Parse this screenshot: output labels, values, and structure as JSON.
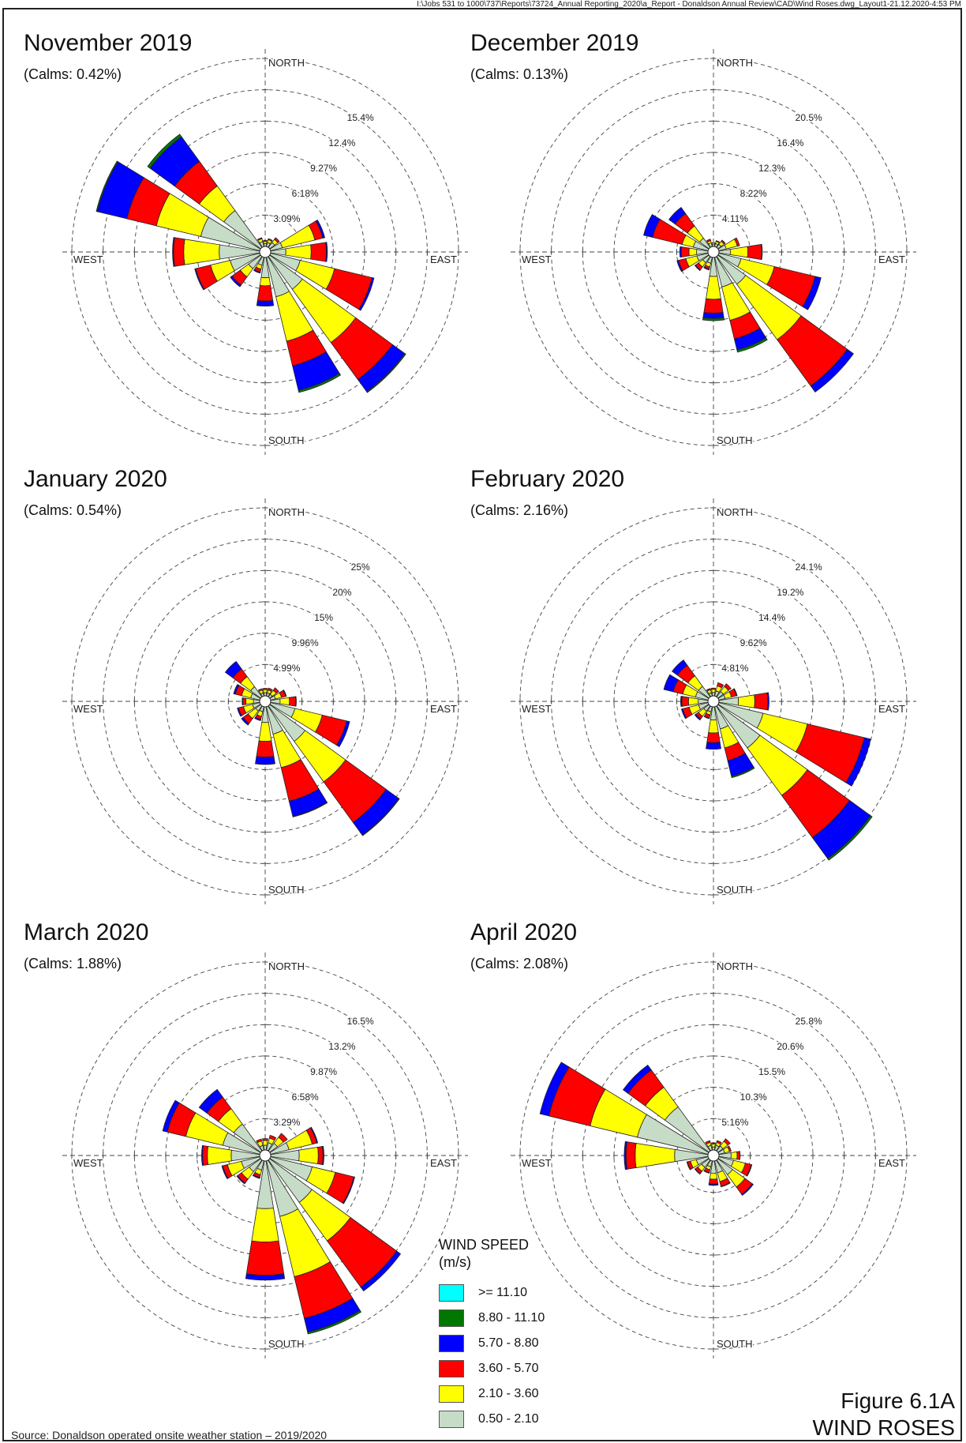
{
  "header": {
    "file_path": "I:\\Jobs 531 to 1000\\737\\Reports\\73724_Annual Reporting_2020\\a_Report - Donaldson Annual Review\\CAD\\Wind Roses.dwg_Layout1-21.12.2020-4:53 PM"
  },
  "direction_labels": {
    "north": "NORTH",
    "south": "SOUTH",
    "east": "EAST",
    "west": "WEST"
  },
  "speed_colors": [
    "#c6dcc6",
    "#ffff00",
    "#ff0000",
    "#0000ff",
    "#007700",
    "#00ffff"
  ],
  "legend": {
    "title": "WIND SPEED",
    "unit": "(m/s)",
    "items": [
      {
        "label": ">= 11.10",
        "color": "#00ffff"
      },
      {
        "label": "8.80 - 11.10",
        "color": "#007700"
      },
      {
        "label": "5.70 - 8.80",
        "color": "#0000ff"
      },
      {
        "label": "3.60 - 5.70",
        "color": "#ff0000"
      },
      {
        "label": "2.10 - 3.60",
        "color": "#ffff00"
      },
      {
        "label": "0.50 - 2.10",
        "color": "#c6dcc6"
      }
    ]
  },
  "footer": {
    "source": "Source: Donaldson operated onsite weather station – 2019/2020",
    "figure_number": "Figure 6.1A",
    "figure_title": "WIND ROSES"
  },
  "chart_data": [
    {
      "type": "wind_rose",
      "title": "November 2019",
      "calms": "(Calms: 0.42%)",
      "rings": [
        "3.09%",
        "6.18%",
        "9.27%",
        "12.4%",
        "15.4%"
      ],
      "max": 18.54,
      "directions": [
        "N",
        "NNE",
        "NE",
        "ENE",
        "E",
        "ESE",
        "SE",
        "SSE",
        "S",
        "SSW",
        "SW",
        "WSW",
        "W",
        "WNW",
        "NW",
        "NNW"
      ],
      "speed_bins": [
        "0.50 - 2.10",
        "2.10 - 3.60",
        "3.60 - 5.70",
        "5.70 - 8.80",
        "8.80 - 11.10",
        ">= 11.10"
      ],
      "frequencies": [
        [
          0.3,
          0.2,
          0.1,
          0,
          0,
          0
        ],
        [
          0.4,
          0.3,
          0.1,
          0,
          0,
          0
        ],
        [
          0.6,
          0.4,
          0.2,
          0,
          0,
          0
        ],
        [
          1.2,
          3.3,
          0.8,
          0.2,
          0,
          0
        ],
        [
          1.5,
          2.5,
          1.5,
          0.1,
          0,
          0
        ],
        [
          3.0,
          3.5,
          3.8,
          0.2,
          0,
          0
        ],
        [
          4.0,
          6.5,
          4.5,
          1.5,
          0.1,
          0
        ],
        [
          4.0,
          4.5,
          2.5,
          2.5,
          0.2,
          0
        ],
        [
          2.0,
          0.8,
          1.5,
          0.5,
          0,
          0
        ],
        [
          0.8,
          0.4,
          0.3,
          0.1,
          0,
          0
        ],
        [
          1.5,
          1.0,
          1.0,
          0.2,
          0,
          0
        ],
        [
          3.0,
          2.0,
          1.5,
          0.1,
          0,
          0
        ],
        [
          4.0,
          3.5,
          1.0,
          0.1,
          0,
          0
        ],
        [
          6.0,
          4.5,
          3.0,
          3.0,
          0.1,
          0
        ],
        [
          4.5,
          3.0,
          3.0,
          3.0,
          0.3,
          0
        ],
        [
          0.5,
          0.3,
          0.1,
          0,
          0,
          0
        ]
      ]
    },
    {
      "type": "wind_rose",
      "title": "December 2019",
      "calms": "(Calms: 0.13%)",
      "rings": [
        "4.11%",
        "8.22%",
        "12.3%",
        "16.4%",
        "20.5%"
      ],
      "max": 24.66,
      "directions": [
        "N",
        "NNE",
        "NE",
        "ENE",
        "E",
        "ESE",
        "SE",
        "SSE",
        "S",
        "SSW",
        "SW",
        "WSW",
        "W",
        "WNW",
        "NW",
        "NNW"
      ],
      "speed_bins": [
        "0.50 - 2.10",
        "2.10 - 3.60",
        "3.60 - 5.70",
        "5.70 - 8.80",
        "8.80 - 11.10",
        ">= 11.10"
      ],
      "frequencies": [
        [
          0.3,
          0.2,
          0,
          0,
          0,
          0
        ],
        [
          0.4,
          0.3,
          0.1,
          0,
          0,
          0
        ],
        [
          0.5,
          0.5,
          0.2,
          0,
          0,
          0
        ],
        [
          1.0,
          1.5,
          0.3,
          0,
          0,
          0
        ],
        [
          1.5,
          2.3,
          1.8,
          0.1,
          0,
          0
        ],
        [
          3.0,
          4.5,
          5.5,
          0.8,
          0,
          0
        ],
        [
          4.5,
          9.0,
          7.5,
          1.0,
          0,
          0
        ],
        [
          4.0,
          4.5,
          2.5,
          1.5,
          0.3,
          0
        ],
        [
          2.5,
          3.0,
          1.8,
          0.7,
          0.3,
          0
        ],
        [
          0.8,
          0.5,
          0.3,
          0.1,
          0,
          0
        ],
        [
          1.0,
          0.7,
          0.5,
          0.1,
          0,
          0
        ],
        [
          1.5,
          1.5,
          1.0,
          0.2,
          0,
          0
        ],
        [
          1.5,
          1.0,
          1.0,
          0.2,
          0,
          0
        ],
        [
          2.0,
          1.5,
          4.0,
          1.2,
          0,
          0
        ],
        [
          1.5,
          2.0,
          2.0,
          1.0,
          0,
          0
        ],
        [
          0.5,
          0.3,
          0.2,
          0,
          0,
          0
        ]
      ]
    },
    {
      "type": "wind_rose",
      "title": "January 2020",
      "calms": "(Calms: 0.54%)",
      "rings": [
        "4.99%",
        "9.96%",
        "15%",
        "20%",
        "25%"
      ],
      "max": 30,
      "directions": [
        "N",
        "NNE",
        "NE",
        "ENE",
        "E",
        "ESE",
        "SE",
        "SSE",
        "S",
        "SSW",
        "SW",
        "WSW",
        "W",
        "WNW",
        "NW",
        "NNW"
      ],
      "speed_bins": [
        "0.50 - 2.10",
        "2.10 - 3.60",
        "3.60 - 5.70",
        "5.70 - 8.80",
        "8.80 - 11.10",
        ">= 11.10"
      ],
      "frequencies": [
        [
          0.5,
          0.5,
          0.2,
          0,
          0,
          0
        ],
        [
          0.5,
          0.5,
          0.3,
          0,
          0,
          0
        ],
        [
          0.5,
          0.8,
          0.5,
          0,
          0,
          0
        ],
        [
          0.8,
          1.0,
          0.7,
          0.1,
          0,
          0
        ],
        [
          1.5,
          1.5,
          1.0,
          0.1,
          0,
          0
        ],
        [
          4.0,
          4.5,
          4.0,
          0.5,
          0,
          0
        ],
        [
          7.0,
          8.0,
          8.0,
          2.5,
          0.1,
          0
        ],
        [
          4.5,
          5.5,
          5.5,
          2.5,
          0.1,
          0
        ],
        [
          2.5,
          3.0,
          2.5,
          1.2,
          0,
          0
        ],
        [
          0.8,
          0.8,
          0.5,
          0.2,
          0,
          0
        ],
        [
          1.0,
          1.5,
          1.0,
          0.3,
          0,
          0
        ],
        [
          1.2,
          1.5,
          0.8,
          0.2,
          0,
          0
        ],
        [
          1.0,
          1.2,
          0.5,
          0.1,
          0,
          0
        ],
        [
          1.5,
          1.5,
          1.0,
          0.3,
          0,
          0
        ],
        [
          2.0,
          2.0,
          1.5,
          1.5,
          0,
          0
        ],
        [
          0.5,
          0.5,
          0.2,
          0,
          0,
          0
        ]
      ]
    },
    {
      "type": "wind_rose",
      "title": "February 2020",
      "calms": "(Calms: 2.16%)",
      "rings": [
        "4.81%",
        "9.62%",
        "14.4%",
        "19.2%",
        "24.1%"
      ],
      "max": 28.86,
      "directions": [
        "N",
        "NNE",
        "NE",
        "ENE",
        "E",
        "ESE",
        "SE",
        "SSE",
        "S",
        "SSW",
        "SW",
        "WSW",
        "W",
        "WNW",
        "NW",
        "NNW"
      ],
      "speed_bins": [
        "0.50 - 2.10",
        "2.10 - 3.60",
        "3.60 - 5.70",
        "5.70 - 8.80",
        "8.80 - 11.10",
        ">= 11.10"
      ],
      "frequencies": [
        [
          0.5,
          0.5,
          0.2,
          0,
          0,
          0
        ],
        [
          0.8,
          0.8,
          0.5,
          0,
          0,
          0
        ],
        [
          1.0,
          1.0,
          0.5,
          0,
          0,
          0
        ],
        [
          1.0,
          1.0,
          0.8,
          0.1,
          0,
          0
        ],
        [
          3.0,
          2.5,
          2.0,
          0.2,
          0,
          0
        ],
        [
          7.0,
          7.0,
          9.0,
          1.0,
          0,
          0
        ],
        [
          8.0,
          9.0,
          8.0,
          4.0,
          0.3,
          0
        ],
        [
          3.5,
          3.0,
          2.0,
          2.5,
          0.2,
          0
        ],
        [
          2.0,
          2.0,
          1.5,
          1.0,
          0,
          0
        ],
        [
          0.8,
          0.5,
          0.5,
          0.1,
          0,
          0
        ],
        [
          1.0,
          1.0,
          0.5,
          0.2,
          0,
          0
        ],
        [
          1.5,
          1.5,
          1.0,
          0.2,
          0,
          0
        ],
        [
          1.5,
          1.5,
          1.0,
          0.2,
          0,
          0
        ],
        [
          2.0,
          2.0,
          1.5,
          1.5,
          0,
          0
        ],
        [
          2.0,
          2.0,
          2.0,
          1.0,
          0,
          0
        ],
        [
          0.5,
          0.5,
          0.2,
          0,
          0,
          0
        ]
      ]
    },
    {
      "type": "wind_rose",
      "title": "March 2020",
      "calms": "(Calms: 1.88%)",
      "rings": [
        "3.29%",
        "6.58%",
        "9.87%",
        "13.2%",
        "16.5%"
      ],
      "max": 19.74,
      "directions": [
        "N",
        "NNE",
        "NE",
        "ENE",
        "E",
        "ESE",
        "SE",
        "SSE",
        "S",
        "SSW",
        "SW",
        "WSW",
        "W",
        "WNW",
        "NW",
        "NNW"
      ],
      "speed_bins": [
        "0.50 - 2.10",
        "2.10 - 3.60",
        "3.60 - 5.70",
        "5.70 - 8.80",
        "8.80 - 11.10",
        ">= 11.10"
      ],
      "frequencies": [
        [
          0.5,
          0.5,
          0.2,
          0,
          0,
          0
        ],
        [
          0.8,
          0.5,
          0.3,
          0,
          0,
          0
        ],
        [
          1.0,
          0.8,
          0.5,
          0,
          0,
          0
        ],
        [
          2.0,
          2.5,
          0.5,
          0.1,
          0,
          0
        ],
        [
          3.0,
          2.0,
          0.5,
          0.1,
          0,
          0
        ],
        [
          4.5,
          2.5,
          2.0,
          0.1,
          0,
          0
        ],
        [
          5.5,
          5.0,
          6.0,
          0.5,
          0,
          0
        ],
        [
          6.0,
          6.5,
          4.5,
          1.5,
          0.2,
          0
        ],
        [
          5.0,
          3.5,
          3.5,
          0.5,
          0,
          0
        ],
        [
          1.0,
          0.5,
          0.3,
          0.1,
          0,
          0
        ],
        [
          1.5,
          1.0,
          0.5,
          0.1,
          0,
          0
        ],
        [
          2.0,
          1.5,
          0.5,
          0.1,
          0,
          0
        ],
        [
          3.0,
          2.5,
          0.5,
          0.1,
          0,
          0
        ],
        [
          4.0,
          4.0,
          2.0,
          0.5,
          0,
          0
        ],
        [
          3.5,
          2.0,
          1.5,
          1.0,
          0,
          0
        ],
        [
          0.5,
          0.5,
          0.2,
          0,
          0,
          0
        ]
      ]
    },
    {
      "type": "wind_rose",
      "title": "April 2020",
      "calms": "(Calms: 2.08%)",
      "rings": [
        "5.16%",
        "10.3%",
        "15.5%",
        "20.6%",
        "25.8%"
      ],
      "max": 30.96,
      "directions": [
        "N",
        "NNE",
        "NE",
        "ENE",
        "E",
        "ESE",
        "SE",
        "SSE",
        "S",
        "SSW",
        "SW",
        "WSW",
        "W",
        "WNW",
        "NW",
        "NNW"
      ],
      "speed_bins": [
        "0.50 - 2.10",
        "2.10 - 3.60",
        "3.60 - 5.70",
        "5.70 - 8.80",
        "8.80 - 11.10",
        ">= 11.10"
      ],
      "frequencies": [
        [
          0.5,
          0.5,
          0.2,
          0,
          0,
          0
        ],
        [
          0.8,
          0.5,
          0.3,
          0,
          0,
          0
        ],
        [
          1.0,
          1.0,
          0.5,
          0,
          0,
          0
        ],
        [
          1.0,
          0.8,
          0.3,
          0,
          0,
          0
        ],
        [
          2.0,
          1.0,
          0.5,
          0,
          0,
          0
        ],
        [
          2.5,
          2.0,
          1.0,
          0.1,
          0,
          0
        ],
        [
          3.0,
          2.5,
          1.5,
          0.2,
          0,
          0
        ],
        [
          2.0,
          1.5,
          0.8,
          0.1,
          0,
          0
        ],
        [
          2.0,
          1.0,
          0.8,
          0.2,
          0,
          0
        ],
        [
          1.0,
          0.5,
          0.5,
          0.1,
          0,
          0
        ],
        [
          1.5,
          0.8,
          0.5,
          0.1,
          0,
          0
        ],
        [
          2.0,
          1.0,
          0.5,
          0.1,
          0,
          0
        ],
        [
          5.5,
          6.5,
          1.5,
          0.3,
          0,
          0
        ],
        [
          12.0,
          8.0,
          7.0,
          1.5,
          0,
          0
        ],
        [
          9.0,
          4.0,
          3.5,
          1.0,
          0,
          0
        ],
        [
          0.8,
          0.5,
          0.3,
          0,
          0,
          0
        ]
      ]
    }
  ]
}
